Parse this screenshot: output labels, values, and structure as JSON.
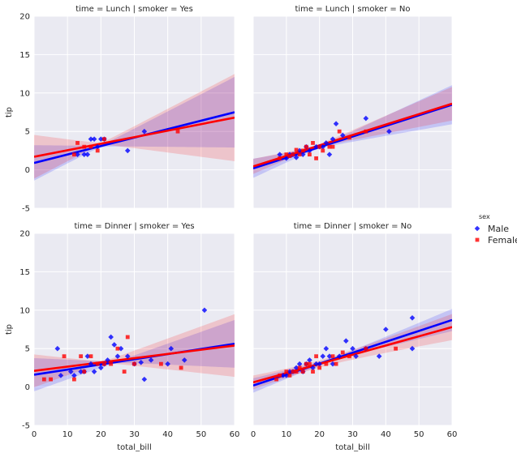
{
  "chart_data": {
    "type": "scatter",
    "figure": "lmplot facet grid with linear regression fits and 95% confidence bands",
    "xlabel": "total_bill",
    "ylabel": "tip",
    "xlim": [
      0,
      60
    ],
    "ylim": [
      -5,
      20
    ],
    "xticks": [
      0,
      10,
      20,
      30,
      40,
      50,
      60
    ],
    "yticks": [
      -5,
      0,
      5,
      10,
      15,
      20
    ],
    "grid": true,
    "legend": {
      "title": "sex",
      "placement": "right",
      "entries": [
        {
          "name": "Male",
          "color": "#0000ff",
          "marker": "diamond"
        },
        {
          "name": "Female",
          "color": "#ff0000",
          "marker": "square"
        }
      ]
    },
    "panels": [
      {
        "title": "time = Lunch | smoker = Yes",
        "series": [
          {
            "name": "Male",
            "points": [
              [
                13,
                2
              ],
              [
                15,
                2
              ],
              [
                16,
                2
              ],
              [
                17,
                4
              ],
              [
                18,
                4
              ],
              [
                19,
                3
              ],
              [
                20,
                4
              ],
              [
                21,
                4
              ],
              [
                28,
                2.5
              ],
              [
                33,
                5
              ]
            ],
            "fit": {
              "intercept": 0.9,
              "slope": 0.11
            },
            "ci": {
              "at0": [
                -1.0,
                2.0
              ],
              "at60": [
                4.0,
                12.5
              ]
            }
          },
          {
            "name": "Female",
            "points": [
              [
                12,
                2
              ],
              [
                13,
                3.5
              ],
              [
                15,
                3
              ],
              [
                17,
                3
              ],
              [
                19,
                2.5
              ],
              [
                21,
                4
              ],
              [
                43,
                5
              ]
            ],
            "fit": {
              "intercept": 1.7,
              "slope": 0.085
            },
            "ci": {
              "at0": [
                -1.6,
                1.8
              ],
              "at60": [
                4.8,
                15.2
              ]
            }
          }
        ]
      },
      {
        "title": "time = Lunch | smoker = No",
        "series": [
          {
            "name": "Male",
            "points": [
              [
                8,
                2
              ],
              [
                10,
                1.5
              ],
              [
                11,
                2
              ],
              [
                12,
                2
              ],
              [
                13,
                1.6
              ],
              [
                14,
                2.5
              ],
              [
                15,
                2
              ],
              [
                16,
                3
              ],
              [
                17,
                2.5
              ],
              [
                19,
                3
              ],
              [
                20,
                3
              ],
              [
                21,
                3
              ],
              [
                22,
                3.5
              ],
              [
                23,
                2
              ],
              [
                24,
                4
              ],
              [
                25,
                6
              ],
              [
                27,
                4.5
              ],
              [
                34,
                6.7
              ],
              [
                41,
                5
              ]
            ],
            "fit": {
              "intercept": 0.2,
              "slope": 0.138
            },
            "ci": {
              "at0": [
                -0.4,
                0.8
              ],
              "at60": [
                6.8,
                11.4
              ]
            }
          },
          {
            "name": "Female",
            "points": [
              [
                8,
                1.5
              ],
              [
                10,
                2
              ],
              [
                11,
                1.8
              ],
              [
                12,
                2
              ],
              [
                13,
                2.6
              ],
              [
                14,
                2
              ],
              [
                15,
                2.5
              ],
              [
                16,
                3
              ],
              [
                17,
                2
              ],
              [
                18,
                3.5
              ],
              [
                19,
                1.5
              ],
              [
                20,
                3
              ],
              [
                21,
                2.5
              ],
              [
                23,
                3
              ],
              [
                24,
                3
              ],
              [
                26,
                5
              ],
              [
                29,
                4.2
              ],
              [
                34,
                5
              ]
            ],
            "fit": {
              "intercept": 0.45,
              "slope": 0.136
            },
            "ci": {
              "at0": [
                -0.2,
                1.0
              ],
              "at60": [
                6.5,
                10.6
              ]
            }
          }
        ]
      },
      {
        "title": "time = Dinner | smoker = Yes",
        "series": [
          {
            "name": "Male",
            "points": [
              [
                7,
                5
              ],
              [
                8,
                1.5
              ],
              [
                11,
                2
              ],
              [
                12,
                1.5
              ],
              [
                14,
                2
              ],
              [
                15,
                2
              ],
              [
                16,
                4
              ],
              [
                17,
                3
              ],
              [
                18,
                2
              ],
              [
                20,
                2.5
              ],
              [
                21,
                3
              ],
              [
                22,
                3.5
              ],
              [
                23,
                6.5
              ],
              [
                24,
                5.5
              ],
              [
                25,
                4
              ],
              [
                26,
                5
              ],
              [
                28,
                4
              ],
              [
                30,
                3
              ],
              [
                32,
                3.2
              ],
              [
                33,
                1
              ],
              [
                35,
                3.5
              ],
              [
                40,
                3
              ],
              [
                41,
                5
              ],
              [
                45,
                3.5
              ],
              [
                51,
                10
              ]
            ],
            "fit": {
              "intercept": 1.6,
              "slope": 0.067
            },
            "ci": {
              "at0": [
                0.0,
                3.2
              ],
              "at60": [
                3.0,
                8.5
              ]
            }
          },
          {
            "name": "Female",
            "points": [
              [
                3,
                1
              ],
              [
                5,
                1
              ],
              [
                9,
                4
              ],
              [
                12,
                1
              ],
              [
                14,
                4
              ],
              [
                15,
                2
              ],
              [
                17,
                4
              ],
              [
                19,
                3
              ],
              [
                21,
                3
              ],
              [
                23,
                3
              ],
              [
                25,
                5
              ],
              [
                27,
                2
              ],
              [
                28,
                6.5
              ],
              [
                30,
                3
              ],
              [
                38,
                3
              ],
              [
                44,
                2.5
              ]
            ],
            "fit": {
              "intercept": 2.1,
              "slope": 0.055
            },
            "ci": {
              "at0": [
                0.5,
                3.6
              ],
              "at60": [
                2.4,
                10.0
              ]
            }
          }
        ]
      },
      {
        "title": "time = Dinner | smoker = No",
        "series": [
          {
            "name": "Male",
            "points": [
              [
                9,
                1.5
              ],
              [
                10,
                1.5
              ],
              [
                11,
                2
              ],
              [
                12,
                2
              ],
              [
                13,
                2.5
              ],
              [
                14,
                3
              ],
              [
                15,
                2
              ],
              [
                16,
                3
              ],
              [
                17,
                3.5
              ],
              [
                18,
                2.5
              ],
              [
                19,
                3
              ],
              [
                20,
                3
              ],
              [
                21,
                4
              ],
              [
                22,
                5
              ],
              [
                23,
                4
              ],
              [
                24,
                3
              ],
              [
                26,
                4
              ],
              [
                28,
                6
              ],
              [
                30,
                5
              ],
              [
                31,
                4
              ],
              [
                34,
                5
              ],
              [
                38,
                4
              ],
              [
                40,
                7.5
              ],
              [
                48,
                9
              ],
              [
                48,
                5
              ]
            ],
            "fit": {
              "intercept": 0.2,
              "slope": 0.142
            },
            "ci": {
              "at0": [
                -0.5,
                0.9
              ],
              "at60": [
                7.4,
                10.0
              ]
            }
          },
          {
            "name": "Female",
            "points": [
              [
                7,
                1
              ],
              [
                8,
                1.5
              ],
              [
                10,
                2
              ],
              [
                11,
                1.5
              ],
              [
                12,
                2
              ],
              [
                13,
                2
              ],
              [
                14,
                2.5
              ],
              [
                15,
                2
              ],
              [
                16,
                3
              ],
              [
                17,
                3
              ],
              [
                18,
                2
              ],
              [
                19,
                4
              ],
              [
                20,
                2.5
              ],
              [
                22,
                3
              ],
              [
                24,
                4
              ],
              [
                25,
                3
              ],
              [
                27,
                4.5
              ],
              [
                29,
                4
              ],
              [
                34,
                5
              ],
              [
                43,
                5
              ]
            ],
            "fit": {
              "intercept": 0.6,
              "slope": 0.12
            },
            "ci": {
              "at0": [
                -0.3,
                1.5
              ],
              "at60": [
                5.8,
                9.2
              ]
            }
          }
        ]
      }
    ]
  }
}
